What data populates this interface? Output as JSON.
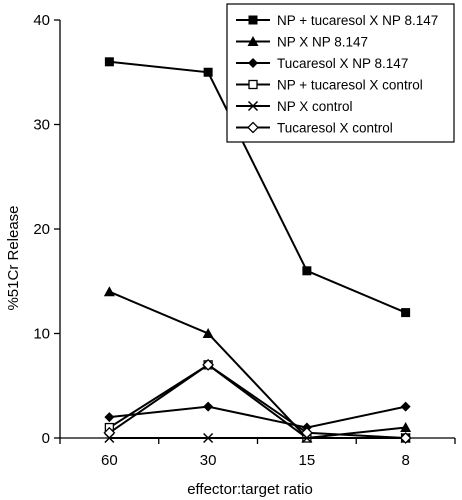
{
  "chart_data": {
    "type": "line",
    "categories": [
      "60",
      "30",
      "15",
      "8"
    ],
    "xlabel": "effector:target ratio",
    "ylabel": "%51Cr Release",
    "ylim": [
      0,
      40
    ],
    "yticks": [
      "0",
      "10",
      "20",
      "30",
      "40"
    ],
    "grid": false,
    "legend_position": "top-right",
    "series": [
      {
        "name": "NP + tucaresol X NP 8.147",
        "marker": "filled-square",
        "values": [
          36,
          35,
          16,
          12
        ]
      },
      {
        "name": "NP X NP 8.147",
        "marker": "filled-triangle",
        "values": [
          14,
          10,
          0,
          1
        ]
      },
      {
        "name": "Tucaresol X NP 8.147",
        "marker": "filled-diamond",
        "values": [
          2,
          3,
          1,
          3
        ]
      },
      {
        "name": "NP + tucaresol X control",
        "marker": "open-square",
        "values": [
          1,
          7,
          0,
          0
        ]
      },
      {
        "name": "NP X control",
        "marker": "x",
        "values": [
          0,
          0,
          0,
          0
        ]
      },
      {
        "name": "Tucaresol X control",
        "marker": "open-diamond",
        "values": [
          0.5,
          7,
          0.5,
          0
        ]
      }
    ]
  }
}
